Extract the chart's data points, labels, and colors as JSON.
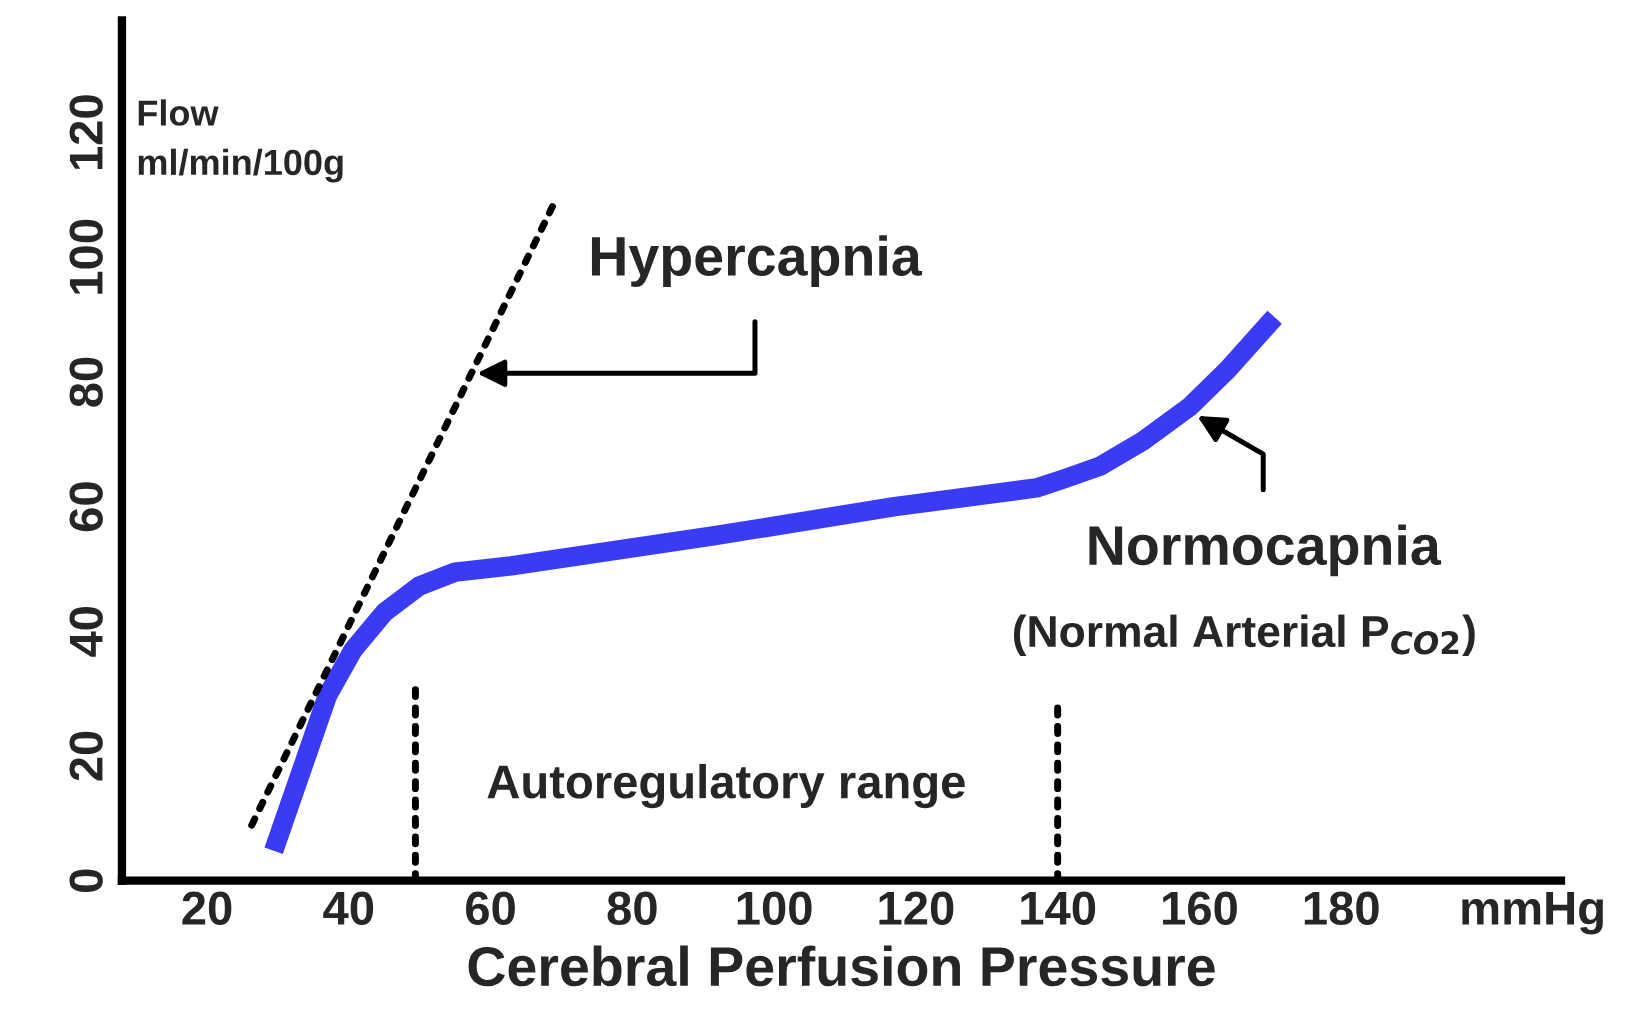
{
  "chart_data": {
    "type": "line",
    "xlabel": "Cerebral Perfusion Pressure",
    "ylabel": "Flow\nml/min/100g",
    "xlim": [
      8,
      211
    ],
    "ylim": [
      0,
      138
    ],
    "xticks": [
      20,
      40,
      60,
      80,
      100,
      120,
      140,
      160,
      180,
      {
        "value": 207,
        "label": "mmHg"
      }
    ],
    "yticks": [
      0,
      20,
      40,
      60,
      80,
      100,
      120
    ],
    "grid": false,
    "legend": false,
    "marker": "none",
    "series": [
      {
        "color": "#3b3bf5",
        "line_style": "solid",
        "x": [
          29.4,
          37,
          40.6,
          45,
          50,
          55,
          62.9,
          91.4,
          117,
          137,
          141,
          146,
          152,
          158.6,
          164,
          170.6
        ],
        "values": [
          4.8,
          29.7,
          37,
          43,
          47.3,
          49.5,
          50.5,
          55.3,
          60,
          63,
          64.5,
          66.5,
          70.5,
          76,
          82,
          90.4
        ]
      },
      {
        "color": "#000000",
        "line_style": "dotted",
        "x": [
          26.3,
          69.1
        ],
        "values": [
          8.9,
          109
        ]
      },
      {
        "color": "#000000",
        "line_style": "dotted",
        "x": [
          49.4,
          49.4
        ],
        "values": [
          0,
          31
        ]
      },
      {
        "color": "#000000",
        "line_style": "dotted",
        "x": [
          140,
          140
        ],
        "values": [
          0,
          29
        ]
      }
    ],
    "annotations": [
      {
        "text": "Hypercapnia",
        "x": 57.3,
        "y": 81.4
      },
      {
        "text": "Normocapnia",
        "x": 159,
        "y": 75
      },
      "(Normal Arterial P$_{CO2}$)",
      "Autoregulatory range"
    ]
  }
}
